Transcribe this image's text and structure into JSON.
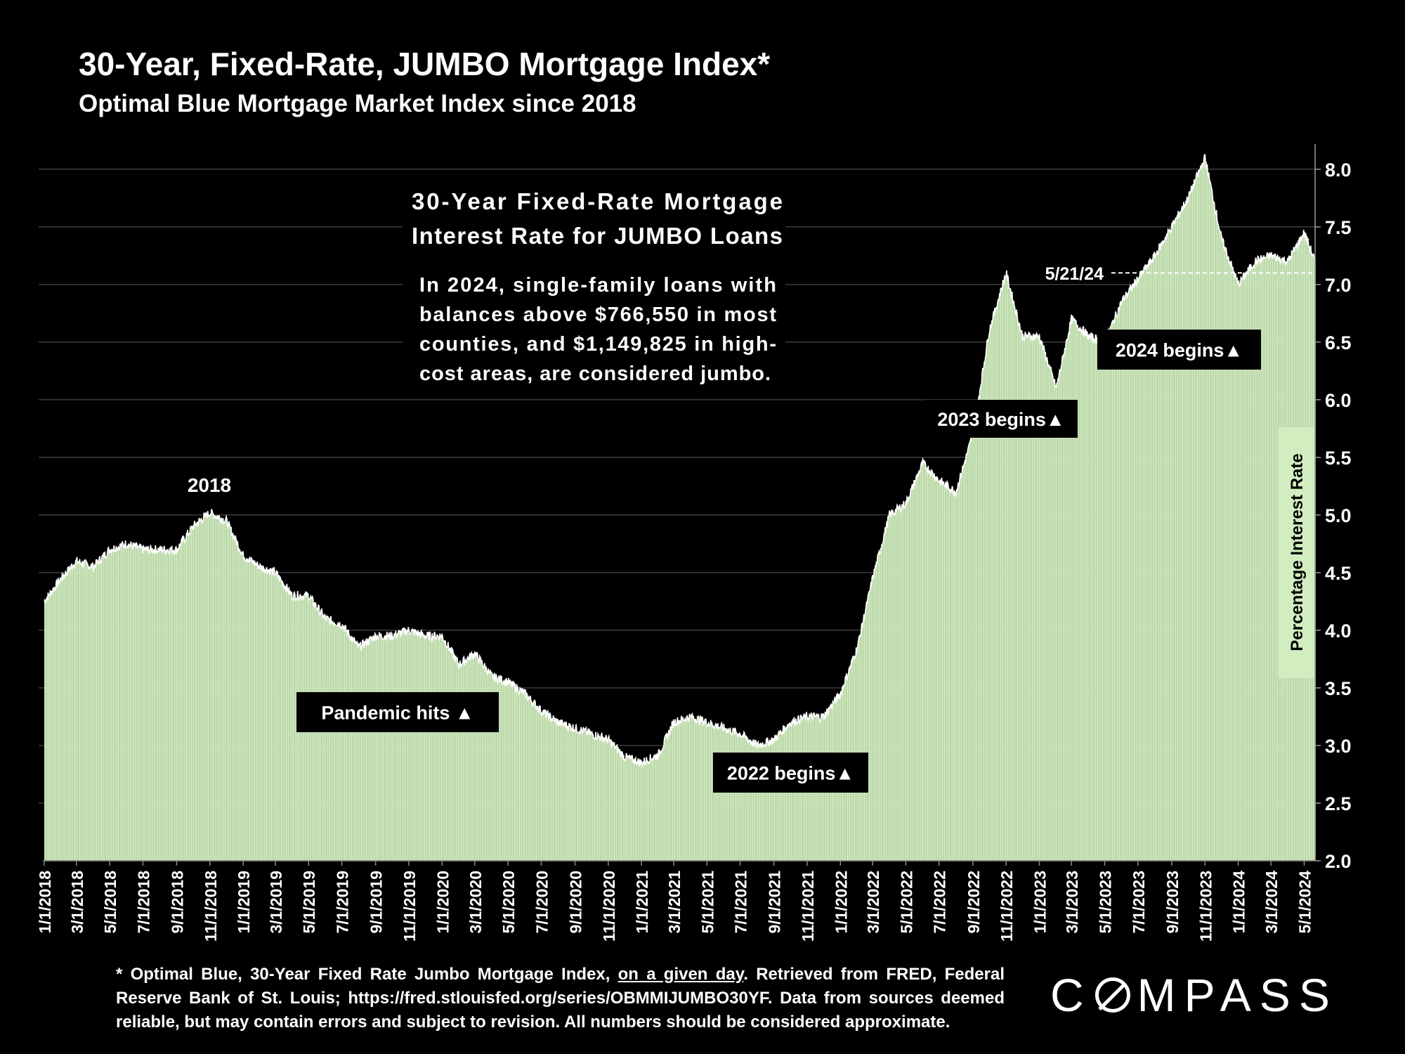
{
  "header": {
    "title": "30-Year, Fixed-Rate, JUMBO Mortgage Index*",
    "subtitle": "Optimal Blue Mortgage Market Index since 2018"
  },
  "colors": {
    "bar": "#d2eec0",
    "line": "#ffffff",
    "background": "#000000",
    "label_box": "#000000",
    "axis_label_box": "#d2eec0"
  },
  "chart_data": {
    "type": "bar",
    "x_start": "1/1/2018",
    "x_end": "5/21/2024",
    "ylabel": "Percentage Interest Rate",
    "ylim": [
      2.0,
      8.2
    ],
    "yticks": [
      "2.0",
      "2.5",
      "3.0",
      "3.5",
      "4.0",
      "4.5",
      "5.0",
      "5.5",
      "6.0",
      "6.5",
      "7.0",
      "7.5",
      "8.0"
    ],
    "xticks": [
      "1/1/2018",
      "3/1/2018",
      "5/1/2018",
      "7/1/2018",
      "9/1/2018",
      "11/1/2018",
      "1/1/2019",
      "3/1/2019",
      "5/1/2019",
      "7/1/2019",
      "9/1/2019",
      "11/1/2019",
      "1/1/2020",
      "3/1/2020",
      "5/1/2020",
      "7/1/2020",
      "9/1/2020",
      "11/1/2020",
      "1/1/2021",
      "3/1/2021",
      "5/1/2021",
      "7/1/2021",
      "9/1/2021",
      "11/1/2021",
      "1/1/2022",
      "3/1/2022",
      "5/1/2022",
      "7/1/2022",
      "9/1/2022",
      "11/1/2022",
      "1/1/2023",
      "3/1/2023",
      "5/1/2023",
      "7/1/2023",
      "9/1/2023",
      "11/1/2023",
      "1/1/2024",
      "3/1/2024",
      "5/1/2024"
    ],
    "grid": true,
    "series": [
      {
        "x": [
          "2018-01-01",
          "2018-02-01",
          "2018-03-01",
          "2018-04-01",
          "2018-05-01",
          "2018-06-01",
          "2018-07-01",
          "2018-08-01",
          "2018-09-01",
          "2018-10-01",
          "2018-11-01",
          "2018-12-01",
          "2019-01-01",
          "2019-02-01",
          "2019-03-01",
          "2019-04-01",
          "2019-05-01",
          "2019-06-01",
          "2019-07-01",
          "2019-08-01",
          "2019-09-01",
          "2019-10-01",
          "2019-11-01",
          "2019-12-01",
          "2020-01-01",
          "2020-02-01",
          "2020-03-01",
          "2020-04-01",
          "2020-05-01",
          "2020-06-01",
          "2020-07-01",
          "2020-08-01",
          "2020-09-01",
          "2020-10-01",
          "2020-11-01",
          "2020-12-01",
          "2021-01-01",
          "2021-02-01",
          "2021-03-01",
          "2021-04-01",
          "2021-05-01",
          "2021-06-01",
          "2021-07-01",
          "2021-08-01",
          "2021-09-01",
          "2021-10-01",
          "2021-11-01",
          "2021-12-01",
          "2022-01-01",
          "2022-02-01",
          "2022-03-01",
          "2022-04-01",
          "2022-05-01",
          "2022-06-01",
          "2022-07-01",
          "2022-08-01",
          "2022-09-01",
          "2022-10-01",
          "2022-11-01",
          "2022-12-01",
          "2023-01-01",
          "2023-02-01",
          "2023-03-01",
          "2023-04-01",
          "2023-05-01",
          "2023-06-01",
          "2023-07-01",
          "2023-08-01",
          "2023-09-01",
          "2023-10-01",
          "2023-11-01",
          "2023-12-01",
          "2024-01-01",
          "2024-02-01",
          "2024-03-01",
          "2024-04-01",
          "2024-05-01",
          "2024-05-21"
        ],
        "values": [
          4.25,
          4.45,
          4.6,
          4.55,
          4.7,
          4.75,
          4.7,
          4.7,
          4.7,
          4.9,
          5.02,
          4.95,
          4.65,
          4.55,
          4.5,
          4.3,
          4.3,
          4.1,
          4.05,
          3.85,
          3.95,
          3.95,
          4.0,
          3.95,
          3.95,
          3.7,
          3.8,
          3.6,
          3.55,
          3.45,
          3.3,
          3.2,
          3.15,
          3.1,
          3.05,
          2.9,
          2.85,
          2.92,
          3.2,
          3.25,
          3.2,
          3.15,
          3.1,
          3.0,
          3.05,
          3.2,
          3.25,
          3.25,
          3.45,
          3.85,
          4.45,
          5.0,
          5.1,
          5.45,
          5.3,
          5.2,
          5.7,
          6.6,
          7.1,
          6.55,
          6.55,
          6.1,
          6.7,
          6.55,
          6.5,
          6.85,
          7.05,
          7.25,
          7.5,
          7.75,
          8.1,
          7.4,
          7.0,
          7.2,
          7.25,
          7.2,
          7.45,
          7.2
        ]
      }
    ],
    "annotations": {
      "year_2018": "2018",
      "pandemic": "Pandemic hits ▲",
      "y2022": "2022 begins▲",
      "y2023": "2023 begins▲",
      "y2024": "2024 begins▲",
      "latest": "5/21/24"
    },
    "info_title": [
      "30-Year Fixed-Rate Mortgage",
      "Interest Rate for JUMBO Loans"
    ],
    "info_body": [
      "In 2024, single-family loans with",
      "balances above $766,550 in most",
      "counties, and $1,149,825 in high-",
      "cost areas, are considered jumbo."
    ]
  },
  "footnote": {
    "part1": "* Optimal Blue, 30-Year Fixed Rate Jumbo Mortgage Index, ",
    "underlined": "on a given day",
    "part2": ". Retrieved from FRED, Federal Reserve Bank of St. Louis; https://fred.stlouisfed.org/series/OBMMIJUMBO30YF. Data from sources deemed reliable, but may contain errors and subject to revision. All numbers should be considered approximate."
  },
  "logo": {
    "before": "C",
    "after": "MPASS"
  }
}
